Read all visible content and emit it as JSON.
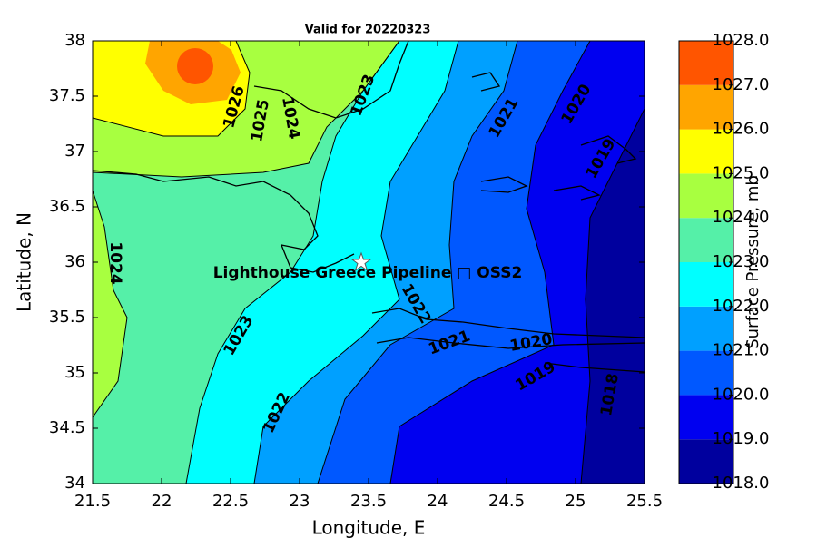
{
  "map": {
    "title": "Valid for 20220323",
    "x_label": "Longitude, E",
    "y_label": "Latitude, N",
    "xlim": [
      21.5,
      25.5
    ],
    "ylim": [
      34,
      38
    ],
    "xticks": [
      21.5,
      22,
      22.5,
      23,
      23.5,
      24,
      24.5,
      25,
      25.5
    ],
    "yticks": [
      34,
      34.5,
      35,
      35.5,
      36,
      36.5,
      37,
      37.5,
      38
    ],
    "colorbar": {
      "label": "Surface Pressure, mb",
      "ticks": [
        {
          "value": 1018,
          "label": "1018.0"
        },
        {
          "value": 1019,
          "label": "1019.0"
        },
        {
          "value": 1020,
          "label": "1020.0"
        },
        {
          "value": 1021,
          "label": "1021.0"
        },
        {
          "value": 1022,
          "label": "1022.0"
        },
        {
          "value": 1023,
          "label": "1023.0"
        },
        {
          "value": 1024,
          "label": "1024.0"
        },
        {
          "value": 1025,
          "label": "1025.0"
        },
        {
          "value": 1026,
          "label": "1026.0"
        },
        {
          "value": 1027,
          "label": "1027.0"
        },
        {
          "value": 1028,
          "label": "1028.0"
        }
      ],
      "colors": [
        "#00009e",
        "#0000f0",
        "#0058ff",
        "#00a0ff",
        "#00ffff",
        "#55f0a8",
        "#a8ff40",
        "#ffff00",
        "#ffa500",
        "#ff5500"
      ]
    },
    "contour_labels": [
      1026,
      1025,
      1024,
      1023,
      1021,
      1020,
      1019,
      1024,
      1023,
      1022,
      1022,
      1021,
      1020,
      1019,
      1018
    ],
    "site_label": "Lighthouse Greece Pipeline □ OSS2"
  }
}
